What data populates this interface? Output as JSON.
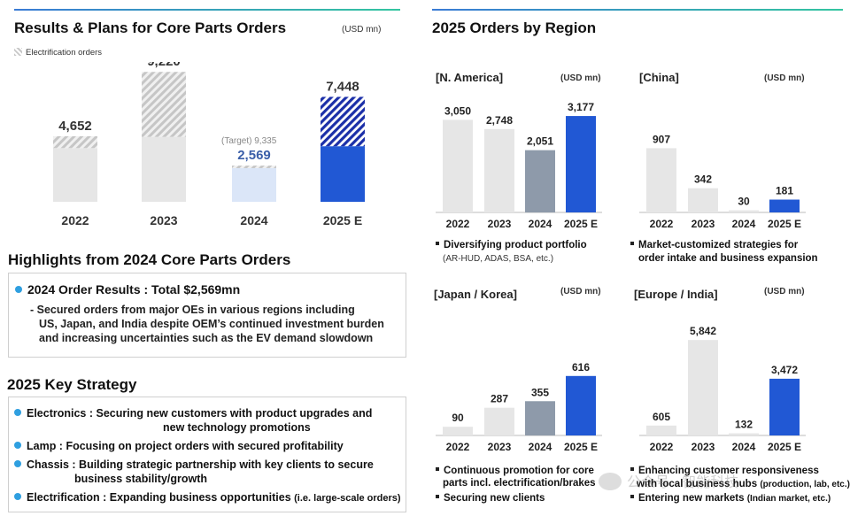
{
  "left_panel": {
    "title": "Results & Plans for Core Parts Orders",
    "unit": "(USD mn)",
    "legend": "Electrification orders",
    "target_label": "(Target) 9,335"
  },
  "chart_data": [
    {
      "id": "core",
      "type": "bar",
      "title": "Results & Plans for Core Parts Orders",
      "unit": "(USD mn)",
      "categories": [
        "2022",
        "2023",
        "2024",
        "2025 E"
      ],
      "values": [
        4652,
        9220,
        2569,
        7448
      ],
      "labels": [
        "4,652",
        "9,220",
        "2,569",
        "7,448"
      ],
      "electrification_share": [
        0.18,
        0.5,
        0.07,
        0.47
      ],
      "target_2024": 9335,
      "ylim": [
        0,
        9800
      ]
    },
    {
      "id": "na",
      "type": "bar",
      "title": "[N. America]",
      "unit": "(USD mn)",
      "categories": [
        "2022",
        "2023",
        "2024",
        "2025 E"
      ],
      "values": [
        3050,
        2748,
        2051,
        3177
      ],
      "labels": [
        "3,050",
        "2,748",
        "2,051",
        "3,177"
      ],
      "ylim": [
        0,
        3500
      ]
    },
    {
      "id": "china",
      "type": "bar",
      "title": "[China]",
      "unit": "(USD mn)",
      "categories": [
        "2022",
        "2023",
        "2024",
        "2025 E"
      ],
      "values": [
        907,
        342,
        30,
        181
      ],
      "labels": [
        "907",
        "342",
        "30",
        "181"
      ],
      "ylim": [
        0,
        1500
      ]
    },
    {
      "id": "jk",
      "type": "bar",
      "title": "[Japan / Korea]",
      "unit": "(USD mn)",
      "categories": [
        "2022",
        "2023",
        "2024",
        "2025 E"
      ],
      "values": [
        90,
        287,
        355,
        616
      ],
      "labels": [
        "90",
        "287",
        "355",
        "616"
      ],
      "ylim": [
        0,
        1100
      ]
    },
    {
      "id": "eu",
      "type": "bar",
      "title": "[Europe / India]",
      "unit": "(USD mn)",
      "categories": [
        "2022",
        "2023",
        "2024",
        "2025 E"
      ],
      "values": [
        605,
        5842,
        132,
        3472
      ],
      "labels": [
        "605",
        "5,842",
        "132",
        "3,472"
      ],
      "ylim": [
        0,
        6500
      ]
    }
  ],
  "highlights": {
    "title": "Highlights from 2024 Core Parts Orders",
    "headline": "2024 Order Results : Total $2,569mn",
    "lines": [
      "- Secured orders from major OEs in various regions including",
      "US, Japan, and India despite OEM’s continued investment burden",
      "and increasing uncertainties such as the EV demand slowdown"
    ]
  },
  "strategy": {
    "title": "2025 Key Strategy",
    "items": [
      {
        "l1": "Electronics : Securing new customers with product upgrades and",
        "l2": "new technology promotions"
      },
      {
        "l1": "Lamp : Focusing on project orders with secured profitability",
        "l2": ""
      },
      {
        "l1": "Chassis : Building strategic partnership with key clients to secure",
        "l2": "business stability/growth"
      },
      {
        "l1": "Electrification : Expanding business opportunities",
        "l1_small": "(i.e. large-scale orders)",
        "l2": ""
      }
    ]
  },
  "right_panel": {
    "title": "2025 Orders by Region",
    "na_notes": [
      "Diversifying product portfolio",
      "(AR-HUD, ADAS, BSA, etc.)"
    ],
    "china_notes": [
      "Market-customized strategies for",
      "order intake and business expansion"
    ],
    "jk_notes": [
      "Continuous promotion for core",
      "parts incl. electrification/brakes",
      "Securing new clients"
    ],
    "eu_notes": [
      "Enhancing customer responsiveness",
      "with local business hubs",
      "(production, lab, etc.)",
      "Entering new markets",
      "(Indian market, etc.)"
    ]
  },
  "watermark": "公众号 · 智能科技",
  "colors": {
    "accent_blue": "#2158d4",
    "light_gray": "#e6e6e6",
    "slate": "#8e9aaa",
    "light_blue": "#dbe6f8",
    "value_blue": "#3a5ea8"
  }
}
